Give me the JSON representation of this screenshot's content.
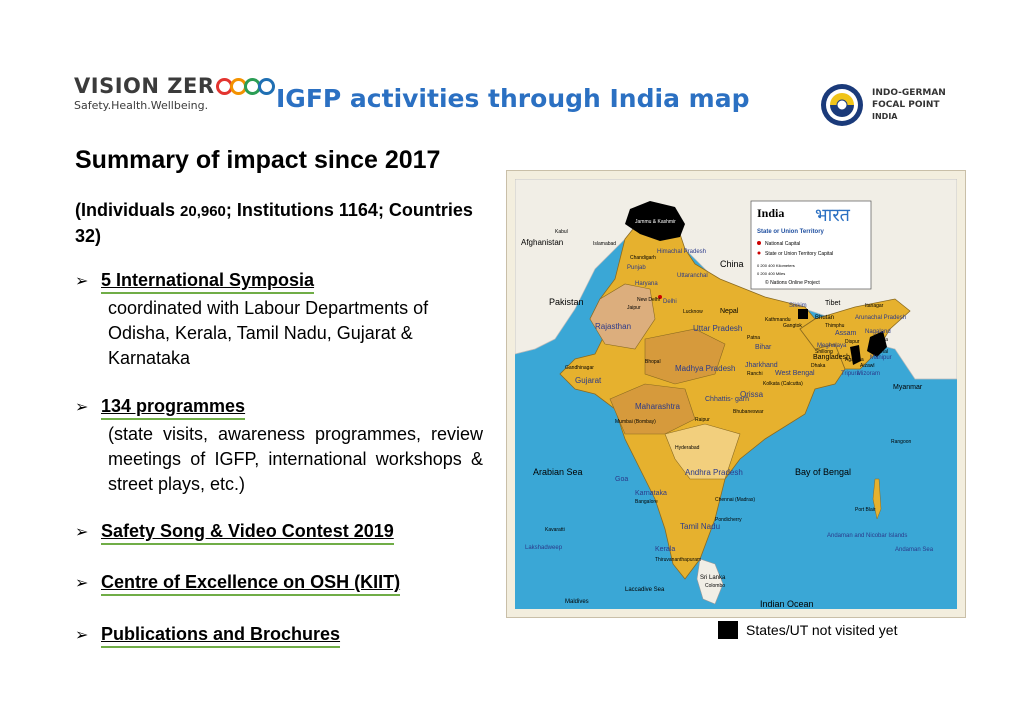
{
  "header": {
    "left_logo": {
      "name": "VISION ZER",
      "tagline": "Safety.Health.Wellbeing.",
      "ring_colors": [
        "#e3342f",
        "#f39200",
        "#2a9d54",
        "#1f6fb3"
      ]
    },
    "title": "IGFP activities through India map",
    "right_logo": {
      "line1": "INDO-GERMAN",
      "line2": "FOCAL POINT",
      "line3": "INDIA"
    }
  },
  "summary": {
    "title": "Summary of impact since 2017",
    "stats_prefix": "(Individuals ",
    "individuals": "20,960",
    "stats_suffix": "; Institutions 1164; Countries 32)"
  },
  "bullets": [
    {
      "label": "5 International Symposia",
      "desc": "coordinated with Labour Departments  of Odisha, Kerala, Tamil Nadu, Gujarat  & Karnataka"
    },
    {
      "label": "134 programmes",
      "desc": "(state visits, awareness programmes, review meetings of IGFP, international workshops & street plays, etc.)"
    },
    {
      "label": "Safety Song & Video Contest 2019",
      "desc": ""
    },
    {
      "label": "Centre of Excellence on OSH (KIIT)",
      "desc": ""
    },
    {
      "label": "Publications and Brochures",
      "desc": ""
    }
  ],
  "bullet_marker": "➢",
  "map": {
    "legend_box": {
      "title": "India",
      "title_hindi": "भारत",
      "subtitle": "State or Union Territory",
      "item1": "National Capital",
      "item2": "State or Union Territory Capital",
      "scale_km": "0      200      400 Kilometers",
      "scale_mi": "0      200      400 Miles",
      "credit": "© Nations Online Project"
    },
    "labels": {
      "afghanistan": "Afghanistan",
      "pakistan": "Pakistan",
      "china": "China",
      "nepal": "Nepal",
      "tibet": "Tibet",
      "bhutan": "Bhutan",
      "bangladesh": "Bangladesh",
      "myanmar": "Myanmar",
      "arabian_sea": "Arabian Sea",
      "bay_of_bengal": "Bay of Bengal",
      "indian_ocean": "Indian Ocean",
      "laccadive_sea": "Laccadive Sea",
      "sri_lanka": "Sri Lanka",
      "colombo": "Colombo",
      "maldives": "Maldives",
      "kabul": "Kabul",
      "islamabad": "Islamabad",
      "rajasthan": "Rajasthan",
      "gujarat": "Gujarat",
      "maharashtra": "Maharashtra",
      "madhya_pradesh": "Madhya Pradesh",
      "uttar_pradesh": "Uttar Pradesh",
      "bihar": "Bihar",
      "jharkhand": "Jharkhand",
      "west_bengal": "West Bengal",
      "orissa": "Orissa",
      "chhattisgarh": "Chhattis- garh",
      "andhra_pradesh": "Andhra Pradesh",
      "karnataka": "Karnataka",
      "tamil_nadu": "Tamil Nadu",
      "kerala": "Kerala",
      "goa": "Goa",
      "punjab": "Punjab",
      "haryana": "Haryana",
      "himachal": "Himachal Pradesh",
      "uttaranchal": "Uttaranchal",
      "jammu": "Jammu & Kashmir",
      "delhi": "Delhi",
      "assam": "Assam",
      "arunachal": "Arunachal Pradesh",
      "nagaland": "Nagaland",
      "mizoram": "Mizoram",
      "tripura": "Tripura",
      "manipur": "Manipur",
      "meghalaya": "Meghalaya",
      "sikkim": "Sikkim",
      "lakshadweep": "Lakshadweep",
      "andaman": "Andaman and Nicobar Islands",
      "andaman_sea": "Andaman Sea",
      "mumbai": "Mumbai (Bombay)",
      "chennai": "Chennai (Madras)",
      "hyderabad": "Hyderabad",
      "bangalore": "Bangalore",
      "bhopal": "Bhopal",
      "jaipur": "Jaipur",
      "lucknow": "Lucknow",
      "patna": "Patna",
      "kolkata": "Kolkata (Calcutta)",
      "ranchi": "Ranchi",
      "raipur": "Raipur",
      "bhubaneswar": "Bhubaneswar",
      "gandhinagar": "Gandhinagar",
      "new_delhi": "New Delhi",
      "chandigarh": "Chandigarh",
      "dispur": "Dispur",
      "kohima": "Kohima",
      "imphal": "Imphal",
      "aizawl": "Aizawl",
      "agartala": "Agartala",
      "shillong": "Shillong",
      "gangtok": "Gangtok",
      "thimphu": "Thimphu",
      "dhaka": "Dhaka",
      "kathmandu": "Kathmandu",
      "port_blair": "Port Blair",
      "yangon": "Rangoon",
      "kavaratti": "Kavaratti",
      "pondicherry": "Pondicherry",
      "trivandrum": "Thiruvananthapuram",
      "itanagar": "Itanagar"
    }
  },
  "legend_note": "States/UT not visited yet",
  "colors": {
    "title_blue": "#2b70c2",
    "underline_green": "#70ad47",
    "ocean": "#3aa7d6",
    "land_neighbor": "#f1eee6",
    "state_yellow": "#e6b12e",
    "state_orange": "#d69a3c",
    "state_tan": "#dcae7d",
    "not_visited": "#000000"
  }
}
